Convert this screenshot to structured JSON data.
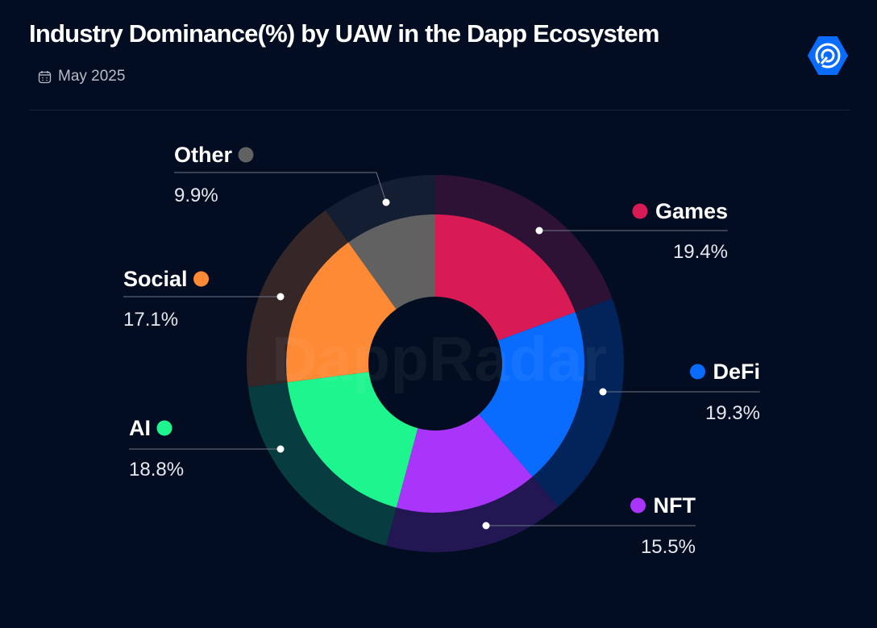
{
  "header": {
    "title": "Industry Dominance(%) by UAW in the Dapp Ecosystem",
    "date": "May 2025",
    "date_icon": "calendar-icon",
    "logo_icon": "dappradar-logo-icon"
  },
  "watermark": "DappRadar",
  "chart_data": {
    "type": "pie",
    "variant": "donut",
    "title": "Industry Dominance(%) by UAW in the Dapp Ecosystem",
    "subtitle": "May 2025",
    "unit": "%",
    "categories": [
      "Games",
      "DeFi",
      "NFT",
      "AI",
      "Social",
      "Other"
    ],
    "values": [
      19.4,
      19.3,
      15.5,
      18.8,
      17.1,
      9.9
    ],
    "value_labels": [
      "19.4%",
      "19.3%",
      "15.5%",
      "18.8%",
      "17.1%",
      "9.9%"
    ],
    "colors": [
      "#d81b55",
      "#0a6cff",
      "#a935fb",
      "#1ff58f",
      "#ff8a35",
      "#616161"
    ],
    "outer_ring_colors": [
      "#2e1236",
      "#03245a",
      "#221752",
      "#073c40",
      "#352628",
      "#141e32"
    ],
    "start": "12 o'clock, clockwise",
    "legend": "callout labels"
  }
}
